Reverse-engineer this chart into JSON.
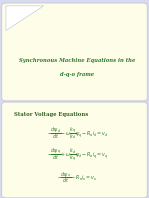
{
  "bg_outer": "#d8daf0",
  "bg_top_card": "#fdfde8",
  "bg_bottom_card": "#fdfde8",
  "title_text_line1": "Synchronous Machine Equations in the",
  "title_text_line2": "d-q-o frame",
  "title_color": "#2d7a2d",
  "section_label": "Stator Voltage Equations",
  "section_color": "#2d6020",
  "eq1": "$-\\dfrac{d\\psi_d}{dt} - \\omega\\dfrac{k_q}{k_d}\\psi_q - R_a i_d = v_d$",
  "eq2": "$-\\dfrac{d\\psi_q}{dt} + \\omega\\dfrac{k_d}{k_q}\\psi_d - R_a i_q = v_q$",
  "eq3": "$-\\dfrac{d\\psi_o}{dt} - R_a i_o = v_o$",
  "eq_color": "#2d7a2d",
  "corner_color": "#ffffff",
  "card_edge": "#c8cae0",
  "figsize": [
    1.49,
    1.98
  ],
  "dpi": 100
}
